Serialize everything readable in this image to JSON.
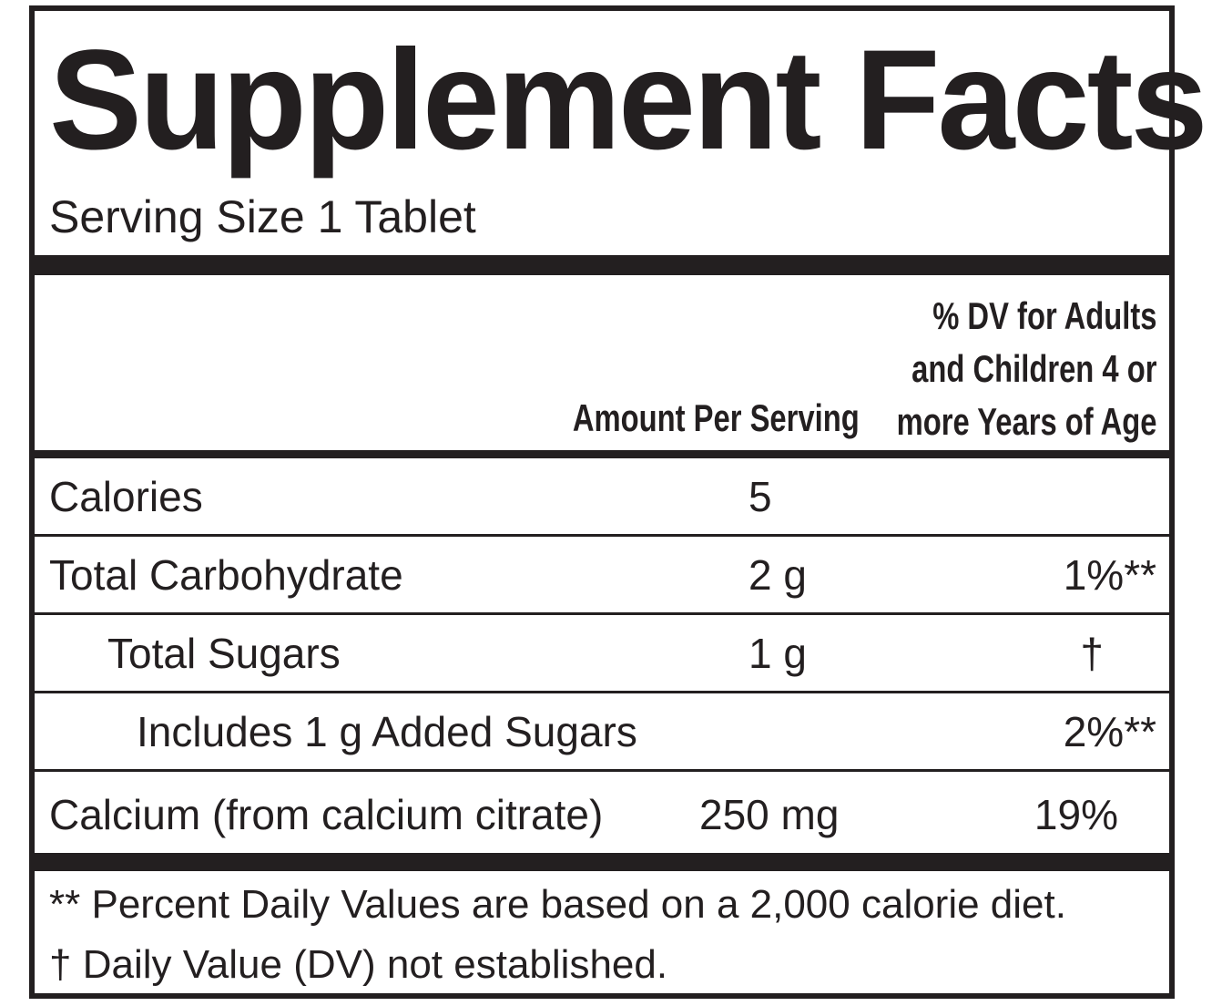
{
  "title": "Supplement Facts",
  "serving_size": "Serving Size 1 Tablet",
  "header": {
    "amount": "Amount Per Serving",
    "dv_line1": "% DV for Adults",
    "dv_line2": "and Children 4 or",
    "dv_line3": "more Years of Age"
  },
  "rows": [
    {
      "name": "Calories",
      "amount": "5",
      "dv": ""
    },
    {
      "name": "Total Carbohydrate",
      "amount": "2 g",
      "dv": "1%**"
    },
    {
      "name": "Total Sugars",
      "amount": "1 g",
      "dv": "†"
    },
    {
      "name": "Includes 1 g Added Sugars",
      "amount": "",
      "dv": "2%**"
    },
    {
      "name": "Calcium (from calcium citrate)",
      "amount": "250 mg",
      "dv": "19%"
    }
  ],
  "footnotes": [
    "** Percent Daily Values are based on a 2,000 calorie diet.",
    "† Daily Value (DV) not established."
  ]
}
